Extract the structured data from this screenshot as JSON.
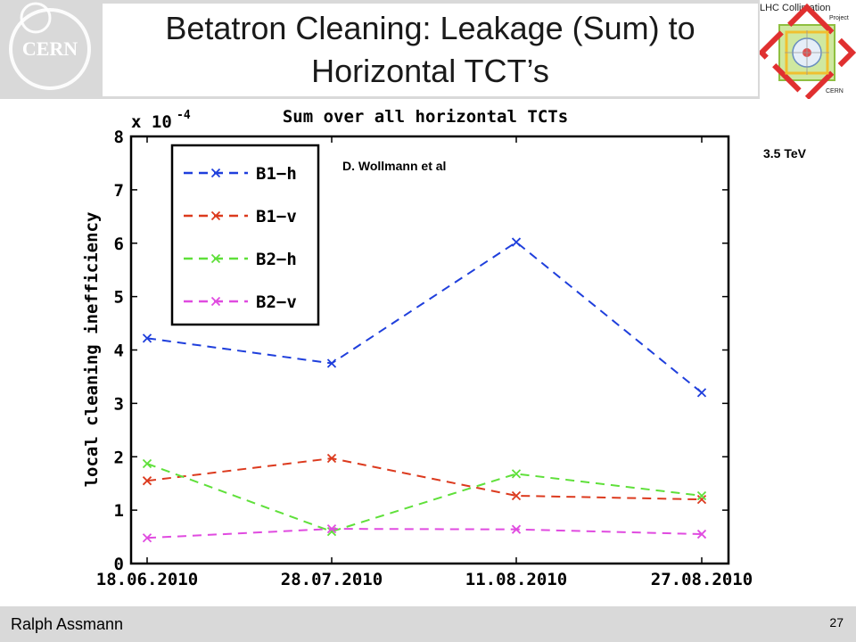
{
  "slide": {
    "title_line1": "Betatron Cleaning: Leakage (Sum) to",
    "title_line2": "Horizontal TCT’s",
    "author": "Ralph Assmann",
    "page_number": "27",
    "energy_label": "3.5 TeV",
    "cern_logo_text": "CERN",
    "lhc_logo": {
      "line1": "LHC Collimation",
      "line2": "Project",
      "line3": "CERN"
    }
  },
  "chart_data": {
    "type": "line",
    "title": "Sum over all horizontal TCTs",
    "ylabel": "local cleaning inefficiency",
    "y_multiplier": "x 10",
    "y_multiplier_exp": "-4",
    "annotation": "D. Wollmann et al",
    "categories": [
      "18.06.2010",
      "28.07.2010",
      "11.08.2010",
      "27.08.2010"
    ],
    "ylim": [
      0,
      8
    ],
    "yticks": [
      "0",
      "1",
      "2",
      "3",
      "4",
      "5",
      "6",
      "7",
      "8"
    ],
    "legend_position": "top-left",
    "series": [
      {
        "name": "B1−h",
        "color": "#1f3fdc",
        "values": [
          4.22,
          3.75,
          6.02,
          3.2
        ]
      },
      {
        "name": "B1−v",
        "color": "#dc3a1e",
        "values": [
          1.55,
          1.97,
          1.27,
          1.2
        ]
      },
      {
        "name": "B2−h",
        "color": "#5fe03a",
        "values": [
          1.87,
          0.6,
          1.68,
          1.27
        ]
      },
      {
        "name": "B2−v",
        "color": "#e04be0",
        "values": [
          0.48,
          0.65,
          0.64,
          0.55
        ]
      }
    ]
  }
}
